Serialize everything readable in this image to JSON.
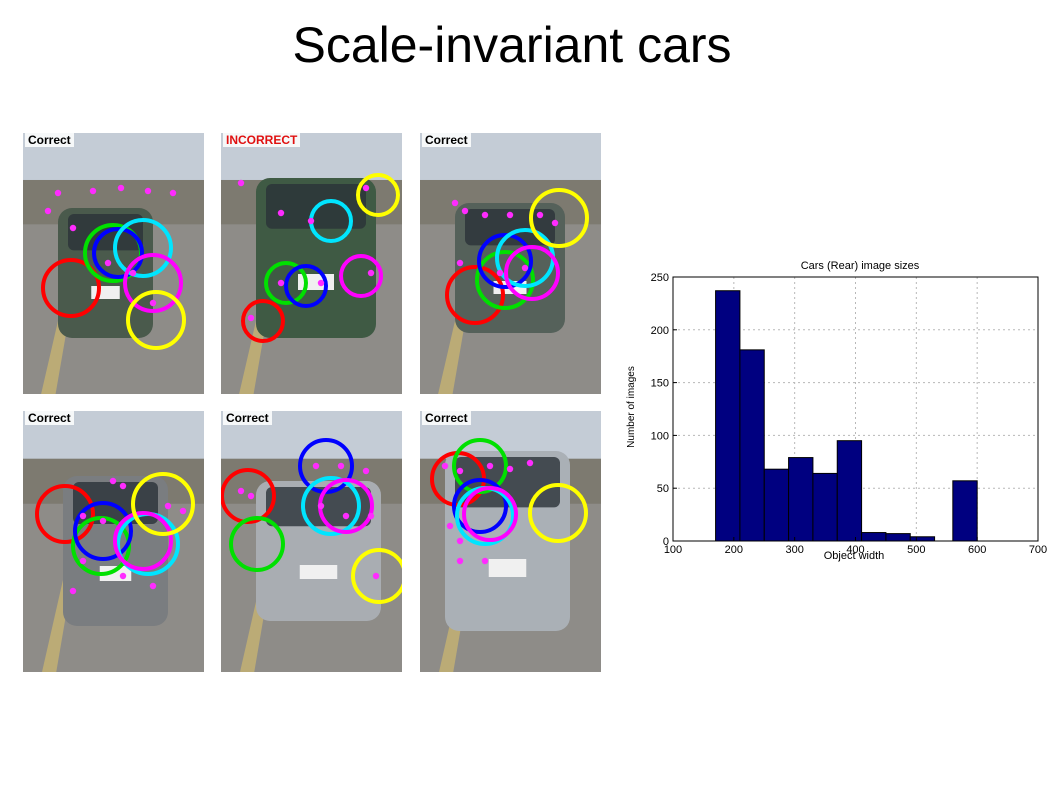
{
  "slide": {
    "title": "Scale-invariant cars"
  },
  "panels": [
    {
      "label": "Correct",
      "status": "correct"
    },
    {
      "label": "INCORRECT",
      "status": "incorrect"
    },
    {
      "label": "Correct",
      "status": "correct"
    },
    {
      "label": "Correct",
      "status": "correct"
    },
    {
      "label": "Correct",
      "status": "correct"
    },
    {
      "label": "Correct",
      "status": "correct"
    }
  ],
  "colors": {
    "circles": [
      "#ff0000",
      "#00e000",
      "#0000ff",
      "#00e5ff",
      "#ff00ff",
      "#ffff00"
    ],
    "points": "#ff2bff",
    "incorrect_label": "#e01010",
    "bar_fill": "#000080"
  },
  "chart_data": {
    "type": "bar",
    "title": "Cars (Rear) image sizes",
    "xlabel": "Object width",
    "ylabel": "Number of images",
    "xlim": [
      100,
      700
    ],
    "ylim": [
      0,
      250
    ],
    "xticks": [
      100,
      200,
      300,
      400,
      500,
      600,
      700
    ],
    "yticks": [
      0,
      50,
      100,
      150,
      200,
      250
    ],
    "grid": true,
    "bin_width": 40,
    "bins": [
      {
        "x": 190,
        "value": 237
      },
      {
        "x": 230,
        "value": 181
      },
      {
        "x": 270,
        "value": 68
      },
      {
        "x": 310,
        "value": 79
      },
      {
        "x": 350,
        "value": 64
      },
      {
        "x": 390,
        "value": 95
      },
      {
        "x": 430,
        "value": 8
      },
      {
        "x": 470,
        "value": 7
      },
      {
        "x": 510,
        "value": 4
      },
      {
        "x": 550,
        "value": 0
      },
      {
        "x": 580,
        "value": 57
      }
    ]
  }
}
